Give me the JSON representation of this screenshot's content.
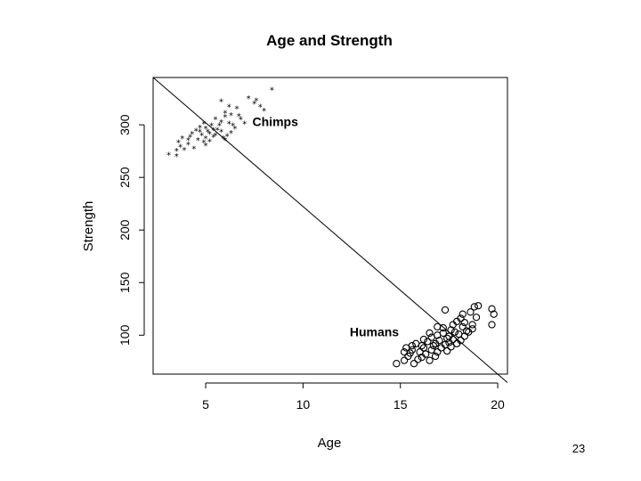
{
  "chart_data": {
    "type": "scatter",
    "title": "Age and Strength",
    "xlabel": "Age",
    "ylabel": "Strength",
    "xlim": [
      2.3,
      20.5
    ],
    "ylim": [
      63,
      345
    ],
    "x_ticks": [
      "5",
      "10",
      "15",
      "20"
    ],
    "y_ticks": [
      "100",
      "150",
      "200",
      "250",
      "300"
    ],
    "grid": false,
    "annotations": [
      {
        "text": "Chimps",
        "x": 7.4,
        "y": 299
      },
      {
        "text": "Humans",
        "x": 12.4,
        "y": 99
      }
    ],
    "series": [
      {
        "marker": "*",
        "points": [
          [
            5.8,
            323
          ],
          [
            8.4,
            334
          ],
          [
            7.6,
            324
          ],
          [
            7.2,
            326
          ],
          [
            7.8,
            318
          ],
          [
            8.0,
            314
          ],
          [
            6.2,
            318
          ],
          [
            6.6,
            316
          ],
          [
            6.0,
            312
          ],
          [
            6.3,
            310
          ],
          [
            5.5,
            306
          ],
          [
            6.0,
            308
          ],
          [
            6.8,
            306
          ],
          [
            5.8,
            303
          ],
          [
            6.2,
            302
          ],
          [
            7.0,
            302
          ],
          [
            4.9,
            302
          ],
          [
            5.3,
            300
          ],
          [
            5.7,
            300
          ],
          [
            6.4,
            300
          ],
          [
            4.7,
            298
          ],
          [
            5.0,
            297
          ],
          [
            5.4,
            296
          ],
          [
            5.6,
            296
          ],
          [
            6.5,
            297
          ],
          [
            4.5,
            295
          ],
          [
            5.1,
            294
          ],
          [
            5.8,
            294
          ],
          [
            6.3,
            293
          ],
          [
            4.3,
            292
          ],
          [
            4.8,
            291
          ],
          [
            5.5,
            291
          ],
          [
            6.1,
            290
          ],
          [
            4.2,
            289
          ],
          [
            5.0,
            288
          ],
          [
            5.4,
            289
          ],
          [
            5.9,
            288
          ],
          [
            3.8,
            288
          ],
          [
            4.6,
            286
          ],
          [
            5.2,
            285
          ],
          [
            6.0,
            286
          ],
          [
            3.6,
            284
          ],
          [
            4.9,
            284
          ],
          [
            4.1,
            282
          ],
          [
            5.0,
            281
          ],
          [
            3.7,
            280
          ],
          [
            4.4,
            278
          ],
          [
            3.5,
            276
          ],
          [
            3.9,
            277
          ],
          [
            3.1,
            272
          ],
          [
            3.5,
            271
          ],
          [
            4.7,
            294
          ],
          [
            5.2,
            292
          ],
          [
            6.7,
            309
          ],
          [
            7.5,
            321
          ],
          [
            4.1,
            286
          ]
        ]
      },
      {
        "marker": "o",
        "points": [
          [
            19.7,
            125
          ],
          [
            19.0,
            128
          ],
          [
            18.8,
            127
          ],
          [
            19.8,
            120
          ],
          [
            17.3,
            124
          ],
          [
            18.6,
            122
          ],
          [
            18.2,
            120
          ],
          [
            19.7,
            110
          ],
          [
            18.9,
            117
          ],
          [
            18.1,
            116
          ],
          [
            17.9,
            113
          ],
          [
            18.3,
            112
          ],
          [
            18.7,
            110
          ],
          [
            17.7,
            110
          ],
          [
            18.2,
            108
          ],
          [
            17.2,
            107
          ],
          [
            18.7,
            106
          ],
          [
            17.6,
            105
          ],
          [
            16.9,
            108
          ],
          [
            18.4,
            104
          ],
          [
            17.8,
            103
          ],
          [
            17.2,
            102
          ],
          [
            16.5,
            102
          ],
          [
            18.0,
            101
          ],
          [
            16.9,
            100
          ],
          [
            17.5,
            99
          ],
          [
            18.3,
            99
          ],
          [
            16.6,
            98
          ],
          [
            17.4,
            97
          ],
          [
            16.2,
            96
          ],
          [
            17.7,
            96
          ],
          [
            17.0,
            95
          ],
          [
            18.1,
            95
          ],
          [
            16.4,
            94
          ],
          [
            17.5,
            93
          ],
          [
            15.8,
            92
          ],
          [
            16.8,
            92
          ],
          [
            17.3,
            91
          ],
          [
            15.6,
            90
          ],
          [
            16.1,
            90
          ],
          [
            16.7,
            90
          ],
          [
            17.6,
            89
          ],
          [
            15.3,
            88
          ],
          [
            16.2,
            88
          ],
          [
            17.1,
            88
          ],
          [
            15.6,
            86
          ],
          [
            16.6,
            86
          ],
          [
            17.4,
            85
          ],
          [
            15.2,
            84
          ],
          [
            16.0,
            84
          ],
          [
            16.9,
            84
          ],
          [
            15.5,
            83
          ],
          [
            16.3,
            82
          ],
          [
            15.4,
            80
          ],
          [
            16.8,
            80
          ],
          [
            16.1,
            79
          ],
          [
            15.9,
            77
          ],
          [
            16.5,
            76
          ],
          [
            15.2,
            76
          ],
          [
            15.7,
            73
          ],
          [
            14.8,
            73
          ],
          [
            17.9,
            92
          ],
          [
            18.5,
            103
          ]
        ]
      }
    ],
    "reference_line": {
      "x0": 2.3,
      "y0": 345,
      "x1": 20.5,
      "y1": 55
    }
  },
  "page_number": "23"
}
